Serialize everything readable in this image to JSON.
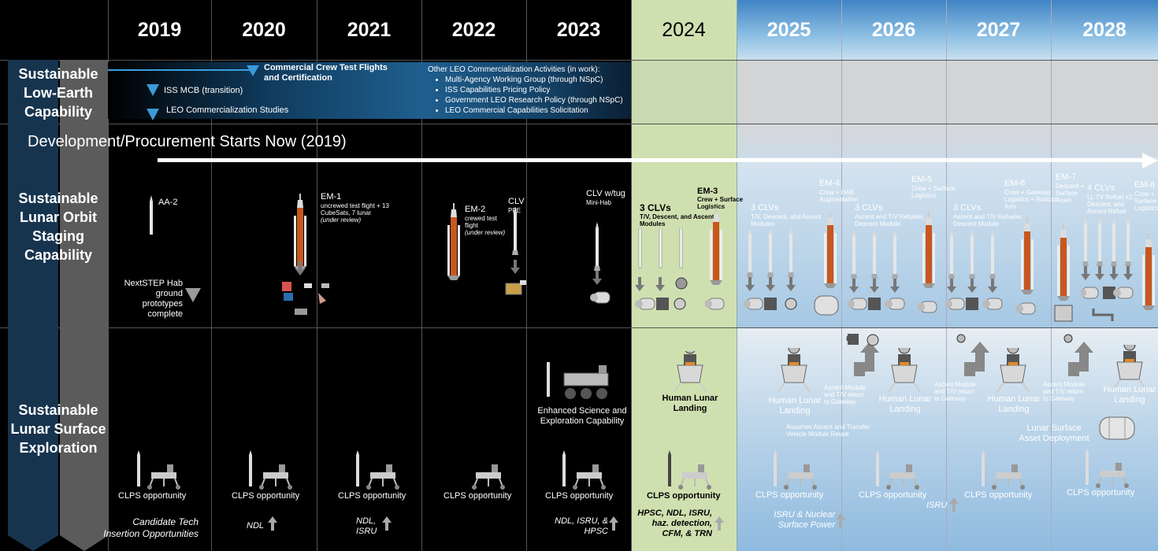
{
  "years": [
    "2019",
    "2020",
    "2021",
    "2022",
    "2023",
    "2024",
    "2025",
    "2026",
    "2027",
    "2028"
  ],
  "rows": {
    "leo": "Sustainable Low-Earth Capability",
    "lunar_orbit": "Sustainable Lunar Orbit Staging Capability",
    "lunar_surface": "Sustainable Lunar Surface Exploration"
  },
  "leo": {
    "commercial_crew": "Commercial Crew Test Flights and Certification",
    "iss_mcb": "ISS MCB (transition)",
    "leo_studies": "LEO Commercialization Studies",
    "other_title": "Other LEO Commercialization Activities  (in work):",
    "other_items": [
      "Multi-Agency Working Group (through NSpC)",
      "ISS Capabilities Pricing Policy",
      "Government LEO Research Policy (through NSpC)",
      "LEO Commercial Capabilities Solicitation"
    ]
  },
  "development_banner": "Development/Procurement Starts Now (2019)",
  "orbit": {
    "aa2": "AA-2",
    "nextstep": "NextSTEP Hab ground prototypes complete",
    "em1_title": "EM-1",
    "em1_desc": "uncrewed test flight + 13 CubeSats, 7 lunar",
    "em1_note": "(under review)",
    "em2_title": "EM-2",
    "em2_desc": "crewed test flight",
    "em2_note": "(under review)",
    "clv_ppe_title": "CLV",
    "clv_ppe_desc": "PPE",
    "clv_tug_title": "CLV w/tug",
    "clv_tug_desc": "Mini-Hab",
    "y2024_clvs_title": "3 CLVs",
    "y2024_clvs_desc": "T/V, Descent, and Ascent Modules",
    "em3_title": "EM-3",
    "em3_desc": "Crew + Surface Logistics",
    "y2025_clvs_title": "3 CLVs",
    "y2025_clvs_desc": "T/V, Descent, and Ascent Modules",
    "em4_title": "EM-4",
    "em4_desc": "Crew + HAB Augmentation",
    "y2026_clvs_title": "3 CLVs",
    "y2026_clvs_desc": "Ascent and T/V Refueler, Descent Module",
    "em5_title": "EM-5",
    "em5_desc": "Crew + Surface Logistics",
    "y2027_clvs_title": "3 CLVs",
    "y2027_clvs_desc": "Ascent and T/V Refueler, Descent Module",
    "em6_title": "EM-6",
    "em6_desc": "Crew + Gateway Logistics + Robotic Arm",
    "em7_title": "EM-7",
    "em7_desc": "Descent + Surface Asset",
    "y2028_clvs_title": "4 CLVs",
    "y2028_clvs_desc": "LL TV Refuel x2, Descent, and Ascent Refuel",
    "em8_title": "EM-8",
    "em8_desc": "Crew + Surface Logistics"
  },
  "surface": {
    "enhanced": "Enhanced Science and Exploration Capability",
    "human_landing_2024": "Human Lunar Landing",
    "human_landing": "Human Lunar Landing",
    "ascent_return": "Ascent Module and T/V return to Gateway",
    "assumes": "Assumes Ascent and Transfer Vehicle Module Reuse",
    "asset_deployment": "Lunar Surface Asset Deployment",
    "clps": "CLPS opportunity",
    "tech_2019": "Candidate Tech Insertion Opportunities",
    "tech_2020": "NDL",
    "tech_2021": "NDL, ISRU",
    "tech_2023": "NDL, ISRU, & HPSC",
    "tech_2024": "HPSC, NDL, ISRU, haz. detection, CFM, & TRN",
    "tech_2025": "ISRU & Nuclear Surface Power",
    "tech_2027": "ISRU"
  },
  "colors": {
    "highlight_2024": "#cfe0b0",
    "future_sky": "#b8d4ea",
    "leo_band": "#1f4e79",
    "label_column": "#1a3550"
  }
}
